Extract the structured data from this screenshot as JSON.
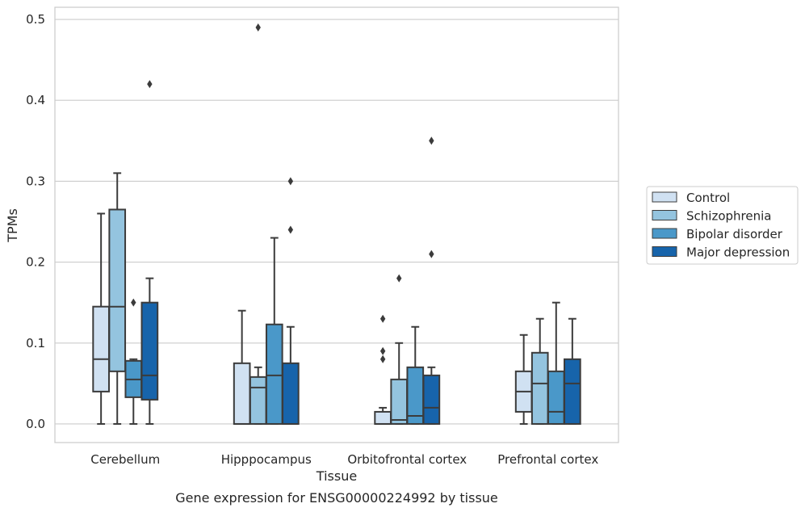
{
  "chart_data": {
    "type": "box",
    "title": "",
    "caption": "Gene expression for ENSG00000224992 by tissue",
    "xlabel": "Tissue",
    "ylabel": "TPMs",
    "ylim": [
      -0.023,
      0.515
    ],
    "yticks": [
      "0.0",
      "0.1",
      "0.2",
      "0.3",
      "0.4",
      "0.5"
    ],
    "grid": true,
    "legend_position": "right",
    "categories": [
      "Cerebellum",
      "Hipppocampus",
      "Orbitofrontal cortex",
      "Prefrontal cortex"
    ],
    "series": [
      {
        "name": "Control",
        "color": "#d0e1f2",
        "boxes": [
          {
            "whisker_low": 0.0,
            "q1": 0.04,
            "median": 0.08,
            "q3": 0.145,
            "whisker_high": 0.26,
            "outliers": []
          },
          {
            "whisker_low": 0.0,
            "q1": 0.0,
            "median": 0.0,
            "q3": 0.075,
            "whisker_high": 0.14,
            "outliers": []
          },
          {
            "whisker_low": 0.0,
            "q1": 0.0,
            "median": 0.0,
            "q3": 0.015,
            "whisker_high": 0.02,
            "outliers": [
              0.08,
              0.09,
              0.13
            ]
          },
          {
            "whisker_low": 0.0,
            "q1": 0.015,
            "median": 0.04,
            "q3": 0.065,
            "whisker_high": 0.11,
            "outliers": []
          }
        ]
      },
      {
        "name": "Schizophrenia",
        "color": "#94c4df",
        "boxes": [
          {
            "whisker_low": 0.0,
            "q1": 0.065,
            "median": 0.145,
            "q3": 0.265,
            "whisker_high": 0.31,
            "outliers": []
          },
          {
            "whisker_low": 0.0,
            "q1": 0.0,
            "median": 0.045,
            "q3": 0.058,
            "whisker_high": 0.07,
            "outliers": [
              0.49
            ]
          },
          {
            "whisker_low": 0.0,
            "q1": 0.0,
            "median": 0.005,
            "q3": 0.055,
            "whisker_high": 0.1,
            "outliers": [
              0.18
            ]
          },
          {
            "whisker_low": 0.0,
            "q1": 0.0,
            "median": 0.05,
            "q3": 0.088,
            "whisker_high": 0.13,
            "outliers": []
          }
        ]
      },
      {
        "name": "Bipolar disorder",
        "color": "#4a98c9",
        "boxes": [
          {
            "whisker_low": 0.0,
            "q1": 0.033,
            "median": 0.055,
            "q3": 0.078,
            "whisker_high": 0.08,
            "outliers": [
              0.15
            ]
          },
          {
            "whisker_low": 0.0,
            "q1": 0.0,
            "median": 0.06,
            "q3": 0.123,
            "whisker_high": 0.23,
            "outliers": []
          },
          {
            "whisker_low": 0.0,
            "q1": 0.0,
            "median": 0.01,
            "q3": 0.07,
            "whisker_high": 0.12,
            "outliers": []
          },
          {
            "whisker_low": 0.0,
            "q1": 0.0,
            "median": 0.015,
            "q3": 0.065,
            "whisker_high": 0.15,
            "outliers": []
          }
        ]
      },
      {
        "name": "Major depression",
        "color": "#1764ab",
        "boxes": [
          {
            "whisker_low": 0.0,
            "q1": 0.03,
            "median": 0.06,
            "q3": 0.15,
            "whisker_high": 0.18,
            "outliers": [
              0.42
            ]
          },
          {
            "whisker_low": 0.0,
            "q1": 0.0,
            "median": 0.0,
            "q3": 0.075,
            "whisker_high": 0.12,
            "outliers": [
              0.24,
              0.3
            ]
          },
          {
            "whisker_low": 0.0,
            "q1": 0.0,
            "median": 0.02,
            "q3": 0.06,
            "whisker_high": 0.07,
            "outliers": [
              0.21,
              0.35
            ]
          },
          {
            "whisker_low": 0.0,
            "q1": 0.0,
            "median": 0.05,
            "q3": 0.08,
            "whisker_high": 0.13,
            "outliers": []
          }
        ]
      }
    ]
  }
}
